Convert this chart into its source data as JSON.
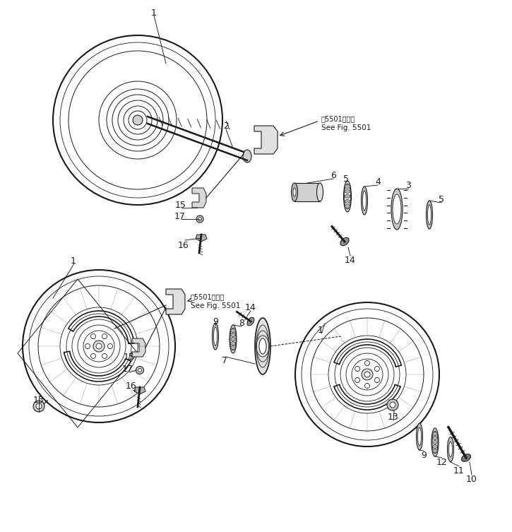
{
  "bg_color": "#ffffff",
  "line_color": "#1a1a1a",
  "fig_width": 7.25,
  "fig_height": 7.53,
  "dpi": 100,
  "note1_text1": "第5501図参照",
  "note1_text2": "See Fig. 5501",
  "note2_text1": "第5501図参照",
  "note2_text2": "See Fig. 5501"
}
